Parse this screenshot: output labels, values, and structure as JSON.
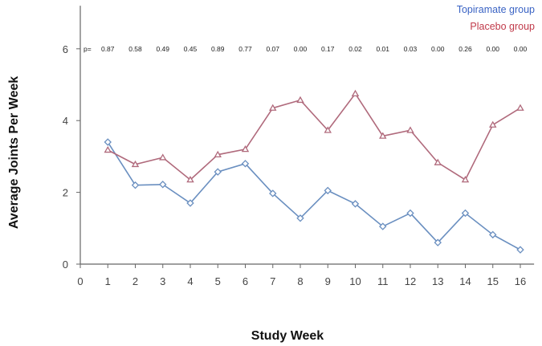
{
  "chart_data": {
    "type": "line",
    "title": "",
    "xlabel": "Study Week",
    "ylabel": "Average Joints Per Week",
    "xlim": [
      0,
      16.5
    ],
    "ylim": [
      0,
      7.2
    ],
    "x_ticks": [
      0,
      1,
      2,
      3,
      4,
      5,
      6,
      7,
      8,
      9,
      10,
      11,
      12,
      13,
      14,
      15,
      16
    ],
    "y_ticks": [
      0,
      2,
      4,
      6
    ],
    "x": [
      1,
      2,
      3,
      4,
      5,
      6,
      7,
      8,
      9,
      10,
      11,
      12,
      13,
      14,
      15,
      16
    ],
    "series": [
      {
        "name": "Topiramate group",
        "color": "#6a8fc0",
        "marker": "diamond",
        "values": [
          3.4,
          2.2,
          2.22,
          1.7,
          2.57,
          2.8,
          1.97,
          1.28,
          2.05,
          1.68,
          1.05,
          1.42,
          0.6,
          1.42,
          0.82,
          0.4
        ]
      },
      {
        "name": "Placebo group",
        "color": "#b06a7c",
        "marker": "triangle",
        "values": [
          3.18,
          2.78,
          2.97,
          2.35,
          3.05,
          3.2,
          4.35,
          4.57,
          3.73,
          4.75,
          3.57,
          3.73,
          2.83,
          2.35,
          3.88,
          4.35
        ]
      }
    ],
    "p_label": "p=",
    "p_values": [
      "0.87",
      "0.58",
      "0.49",
      "0.45",
      "0.89",
      "0.77",
      "0.07",
      "0.00",
      "0.17",
      "0.02",
      "0.01",
      "0.03",
      "0.00",
      "0.26",
      "0.00",
      "0.00"
    ],
    "legend": {
      "position": "top-right",
      "colors": [
        "#3a63c4",
        "#c03a4a"
      ]
    },
    "grid": false
  }
}
